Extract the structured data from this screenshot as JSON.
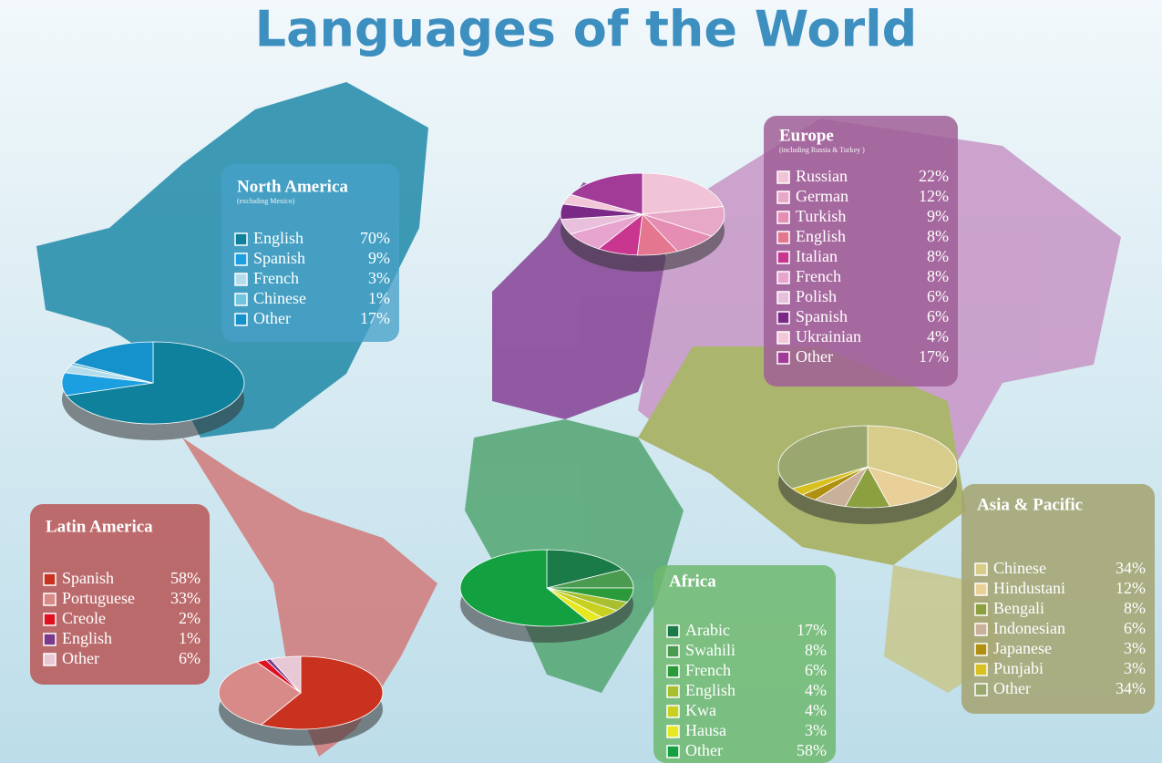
{
  "title": "Languages of the World",
  "chart_data": [
    {
      "type": "pie",
      "title": "North America",
      "subtitle": "(excluding Mexico)",
      "categories": [
        "English",
        "Spanish",
        "French",
        "Chinese",
        "Other"
      ],
      "values": [
        70,
        9,
        3,
        1,
        17
      ],
      "value_labels": [
        "70%",
        "9%",
        "3%",
        "1%",
        "17%"
      ],
      "colors": [
        "#10819c",
        "#1c9fe0",
        "#b4dcea",
        "#72c3de",
        "#1592cc"
      ]
    },
    {
      "type": "pie",
      "title": "Europe",
      "subtitle": "(including Russia & Turkey )",
      "categories": [
        "Russian",
        "German",
        "Turkish",
        "English",
        "Italian",
        "French",
        "Polish",
        "Spanish",
        "Ukrainian",
        "Other"
      ],
      "values": [
        22,
        12,
        9,
        8,
        8,
        8,
        6,
        6,
        4,
        17
      ],
      "value_labels": [
        "22%",
        "12%",
        "9%",
        "8%",
        "8%",
        "8%",
        "6%",
        "6%",
        "4%",
        "17%"
      ],
      "colors": [
        "#f0c4d6",
        "#e7a8c8",
        "#e58db2",
        "#e4768f",
        "#c9368f",
        "#e7a4cf",
        "#e8c0dc",
        "#7a2a86",
        "#f2c8d8",
        "#a23a98"
      ]
    },
    {
      "type": "pie",
      "title": "Latin America",
      "categories": [
        "Spanish",
        "Portuguese",
        "Creole",
        "English",
        "Other"
      ],
      "values": [
        58,
        33,
        2,
        1,
        6
      ],
      "value_labels": [
        "58%",
        "33%",
        "2%",
        "1%",
        "6%"
      ],
      "colors": [
        "#c8321e",
        "#d88a88",
        "#e01020",
        "#7a3a8c",
        "#e8c8d4"
      ]
    },
    {
      "type": "pie",
      "title": "Africa",
      "categories": [
        "Arabic",
        "Swahili",
        "French",
        "English",
        "Kwa",
        "Hausa",
        "Other"
      ],
      "values": [
        17,
        8,
        6,
        4,
        4,
        3,
        58
      ],
      "value_labels": [
        "17%",
        "8%",
        "6%",
        "4%",
        "4%",
        "3%",
        "58%"
      ],
      "colors": [
        "#1a7a48",
        "#4a9a50",
        "#2a9a3a",
        "#a8c030",
        "#c8d020",
        "#e8e820",
        "#12a040"
      ]
    },
    {
      "type": "pie",
      "title": "Asia & Pacific",
      "categories": [
        "Chinese",
        "Hindustani",
        "Bengali",
        "Indonesian",
        "Japanese",
        "Punjabi",
        "Other"
      ],
      "values": [
        34,
        12,
        8,
        6,
        3,
        3,
        34
      ],
      "value_labels": [
        "34%",
        "12%",
        "8%",
        "6%",
        "3%",
        "3%",
        "34%"
      ],
      "colors": [
        "#d8cc8a",
        "#e8d098",
        "#8ca040",
        "#c8b09a",
        "#b09010",
        "#d8c020",
        "#9aa870"
      ]
    }
  ]
}
